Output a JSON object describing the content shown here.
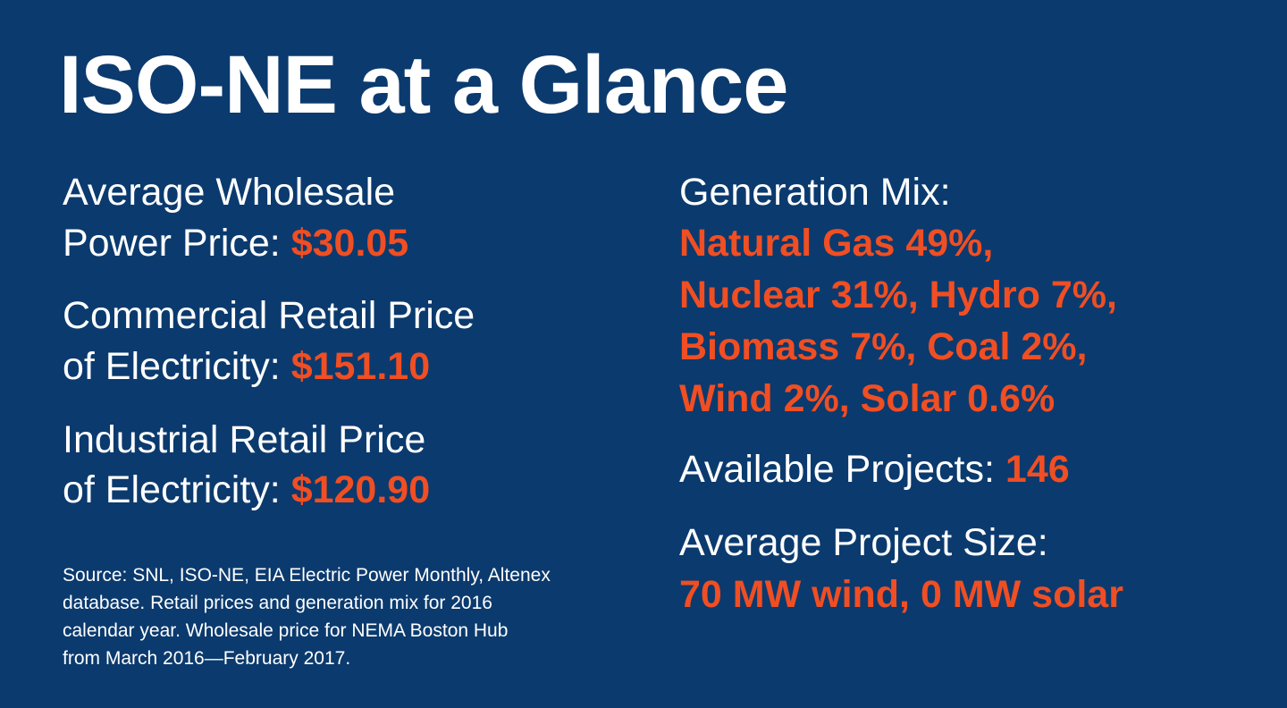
{
  "title": "ISO-NE at a Glance",
  "left": [
    {
      "label_lines": [
        "Average Wholesale",
        "Power Price:"
      ],
      "value": "$30.05"
    },
    {
      "label_lines": [
        "Commercial Retail Price",
        "of Electricity:"
      ],
      "value": "$151.10"
    },
    {
      "label_lines": [
        "Industrial Retail Price",
        "of Electricity:"
      ],
      "value": "$120.90"
    }
  ],
  "source_lines": [
    "Source: SNL, ISO-NE, EIA Electric Power Monthly, Altenex",
    "database. Retail prices and generation mix for 2016",
    "calendar year. Wholesale price for NEMA Boston Hub",
    "from March 2016—February 2017."
  ],
  "generation_mix": {
    "label": "Generation Mix:",
    "value_lines": [
      "Natural Gas 49%,",
      "Nuclear 31%, Hydro 7%,",
      "Biomass 7%, Coal 2%,",
      "Wind 2%, Solar 0.6%"
    ]
  },
  "available_projects": {
    "label": "Available Projects:",
    "value": "146"
  },
  "average_project_size": {
    "label": "Average Project Size:",
    "value": "70 MW wind, 0 MW solar"
  }
}
